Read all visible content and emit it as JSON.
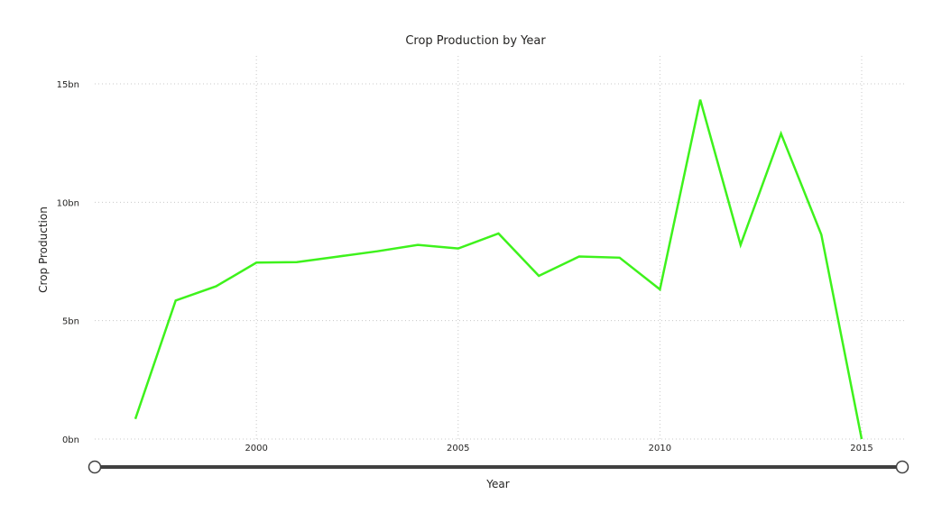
{
  "chart_data": {
    "type": "line",
    "title": "Crop Production by Year",
    "xlabel": "Year",
    "ylabel": "Crop Production",
    "xlim": [
      1997,
      2015
    ],
    "ylim": [
      0,
      15000000000
    ],
    "x_ticks": [
      {
        "value": 2000,
        "label": "2000"
      },
      {
        "value": 2005,
        "label": "2005"
      },
      {
        "value": 2010,
        "label": "2010"
      },
      {
        "value": 2015,
        "label": "2015"
      }
    ],
    "y_ticks": [
      {
        "value": 0,
        "label": "0bn"
      },
      {
        "value": 5000000000,
        "label": "5bn"
      },
      {
        "value": 10000000000,
        "label": "10bn"
      },
      {
        "value": 15000000000,
        "label": "15bn"
      }
    ],
    "grid": true,
    "series": [
      {
        "color": "#3ef21c",
        "x": [
          1997,
          1998,
          1999,
          2000,
          2001,
          2002,
          2003,
          2004,
          2005,
          2006,
          2007,
          2008,
          2009,
          2010,
          2011,
          2012,
          2013,
          2014,
          2015
        ],
        "y": [
          850000000,
          5850000000,
          6450000000,
          7450000000,
          7470000000,
          7700000000,
          7930000000,
          8200000000,
          8050000000,
          8680000000,
          6890000000,
          7710000000,
          7660000000,
          6320000000,
          14330000000,
          8200000000,
          12900000000,
          8630000000,
          0
        ]
      }
    ]
  },
  "slider": {
    "track_color": "#404040"
  }
}
